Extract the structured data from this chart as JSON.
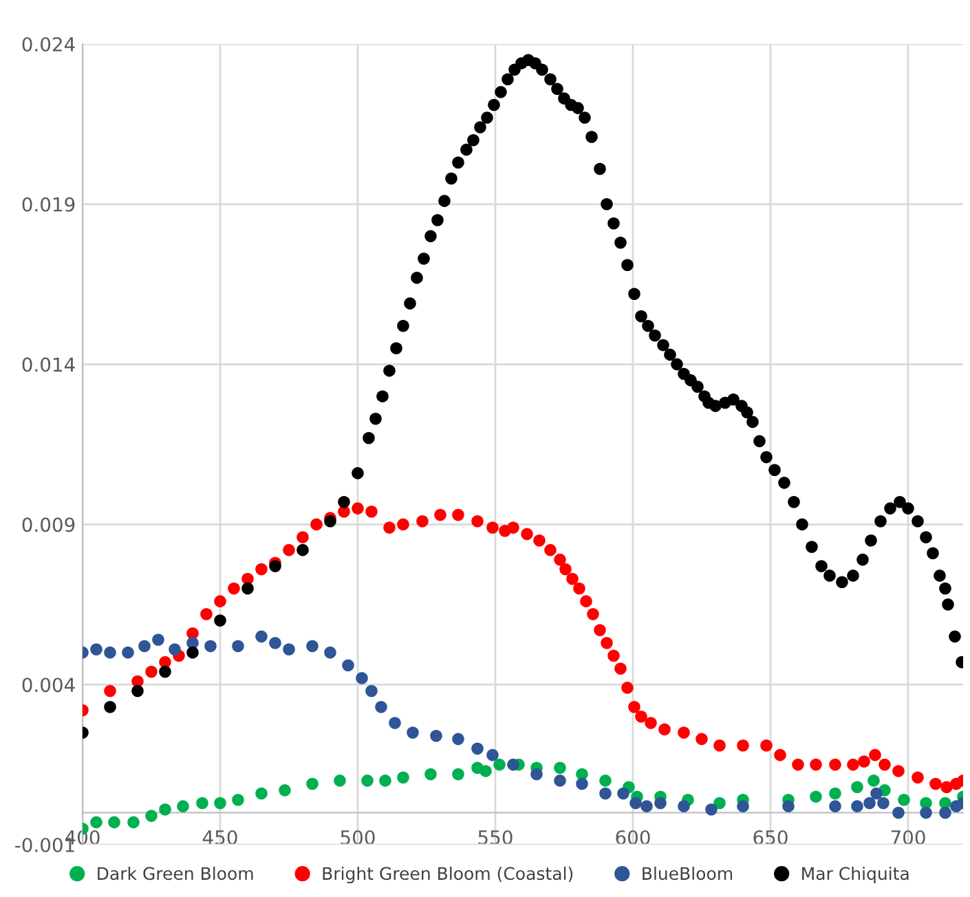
{
  "chart_data": {
    "type": "scatter",
    "xlim": [
      400,
      720
    ],
    "ylim": [
      -0.001,
      0.024
    ],
    "xticks": [
      400,
      450,
      500,
      550,
      600,
      650,
      700
    ],
    "yticks": [
      -0.001,
      0.004,
      0.009,
      0.014,
      0.019,
      0.024
    ],
    "grid": true,
    "legend": "bottom",
    "marker": "circle",
    "series": [
      {
        "name": "Dark Green Bloom",
        "color": "#00b050",
        "x": [
          400,
          405,
          411.5,
          418.5,
          425,
          430,
          436.5,
          443.5,
          450,
          456.5,
          465,
          473.5,
          483.5,
          493.5,
          503.5,
          510,
          516.5,
          526.5,
          536.5,
          543.5,
          546.5,
          551.5,
          558.5,
          565,
          573.5,
          581.5,
          590,
          598.5,
          601.5,
          610,
          620,
          631.5,
          640,
          656.5,
          666.5,
          673.5,
          681.5,
          687.5,
          691.5,
          698.5,
          706.5,
          713.5,
          717.5,
          720
        ],
        "values": [
          -0.0005,
          -0.0003,
          -0.0003,
          -0.0003,
          -0.0001,
          0.0001,
          0.0002,
          0.0003,
          0.0003,
          0.0004,
          0.0006,
          0.0007,
          0.0009,
          0.001,
          0.001,
          0.001,
          0.0011,
          0.0012,
          0.0012,
          0.0014,
          0.0013,
          0.0015,
          0.0015,
          0.0014,
          0.0014,
          0.0012,
          0.001,
          0.0008,
          0.0005,
          0.0005,
          0.0004,
          0.0003,
          0.0004,
          0.0004,
          0.0005,
          0.0006,
          0.0008,
          0.001,
          0.0007,
          0.0004,
          0.0003,
          0.0003,
          null,
          0.0005
        ]
      },
      {
        "name": "Bright Green Bloom (Coastal)",
        "color": "#ff0000",
        "x": [
          400,
          410,
          420,
          425,
          430,
          435,
          440,
          445,
          450,
          455,
          460,
          465,
          470,
          475,
          480,
          485,
          490,
          495,
          500,
          505,
          511.5,
          516.5,
          523.5,
          530,
          536.5,
          543.5,
          549,
          553.5,
          556.5,
          561.5,
          566,
          570,
          573.5,
          575.5,
          578,
          580.5,
          583,
          585.5,
          588,
          590.5,
          593,
          595.5,
          598,
          600.5,
          603,
          606.5,
          611.5,
          618.5,
          625,
          631.5,
          640,
          648.5,
          653.5,
          660,
          666.5,
          673.5,
          680,
          684,
          688,
          691.5,
          696.5,
          703.5,
          710,
          714,
          717.5,
          720
        ],
        "values": [
          0.0032,
          0.0038,
          0.0041,
          0.0044,
          0.0047,
          0.0049,
          0.0056,
          0.0062,
          0.0066,
          0.007,
          0.0073,
          0.0076,
          0.0078,
          0.0082,
          0.0086,
          0.009,
          0.0092,
          0.0094,
          0.0095,
          0.0094,
          0.0089,
          0.009,
          0.0091,
          0.0093,
          0.0093,
          0.0091,
          0.0089,
          0.0088,
          0.0089,
          0.0087,
          0.0085,
          0.0082,
          0.0079,
          0.0076,
          0.0073,
          0.007,
          0.0066,
          0.0062,
          0.0057,
          0.0053,
          0.0049,
          0.0045,
          0.0039,
          0.0033,
          0.003,
          0.0028,
          0.0026,
          0.0025,
          0.0023,
          0.0021,
          0.0021,
          0.0021,
          0.0018,
          0.0015,
          0.0015,
          0.0015,
          0.0015,
          0.0016,
          0.0018,
          0.0015,
          0.0013,
          0.0011,
          0.0009,
          0.0008,
          0.0009,
          0.001
        ]
      },
      {
        "name": "BlueBloom",
        "color": "#2f5597",
        "x": [
          400,
          405,
          410,
          416.5,
          422.5,
          427.5,
          433.5,
          440,
          446.5,
          456.5,
          465,
          470,
          475,
          483.5,
          490,
          496.5,
          501.5,
          505,
          508.5,
          513.5,
          520,
          528.5,
          536.5,
          543.5,
          549,
          556.5,
          565,
          573.5,
          581.5,
          590,
          596.5,
          601,
          605,
          610,
          618.5,
          628.5,
          640,
          656.5,
          673.5,
          681.5,
          686,
          688.5,
          691,
          696.5,
          706.5,
          713.5,
          717.5,
          720
        ],
        "values": [
          0.005,
          0.0051,
          0.005,
          0.005,
          0.0052,
          0.0054,
          0.0051,
          0.0053,
          0.0052,
          0.0052,
          0.0055,
          0.0053,
          0.0051,
          0.0052,
          0.005,
          0.0046,
          0.0042,
          0.0038,
          0.0033,
          0.0028,
          0.0025,
          0.0024,
          0.0023,
          0.002,
          0.0018,
          0.0015,
          0.0012,
          0.001,
          0.0009,
          0.0006,
          0.0006,
          0.0003,
          0.0002,
          0.0003,
          0.0002,
          0.0001,
          0.0002,
          0.0002,
          0.0002,
          0.0002,
          0.0003,
          0.0006,
          0.0003,
          0.0,
          0.0,
          0.0,
          0.0002,
          0.0003
        ]
      },
      {
        "name": "Mar Chiquita",
        "color": "#000000",
        "x": [
          400,
          410,
          420,
          430,
          440,
          450,
          460,
          470,
          480,
          490,
          495,
          500,
          504,
          506.5,
          509,
          511.5,
          514,
          516.5,
          519,
          521.5,
          524,
          526.5,
          529,
          531.5,
          534,
          536.5,
          539.5,
          542,
          544.5,
          547,
          549.5,
          552,
          554.5,
          557,
          559.5,
          562,
          564.5,
          567,
          570,
          572.5,
          575,
          577.5,
          580,
          582.5,
          585,
          588,
          590.5,
          593,
          595.5,
          598,
          600.5,
          603,
          605.5,
          608,
          611,
          613.5,
          616,
          618.5,
          621,
          623.5,
          626,
          627.5,
          630,
          633.5,
          636.5,
          639.5,
          641.5,
          643.5,
          646,
          648.5,
          651.5,
          655,
          658.5,
          661.5,
          665,
          668.5,
          671.5,
          676,
          680,
          683.5,
          686.5,
          690,
          693.5,
          697,
          700,
          703.5,
          706.5,
          709,
          711.5,
          713.5,
          714.5,
          717,
          719.5
        ],
        "values": [
          0.0025,
          0.0033,
          0.0038,
          0.0044,
          0.005,
          0.006,
          0.007,
          0.0077,
          0.0082,
          0.0091,
          0.0097,
          0.0106,
          0.0117,
          0.0123,
          0.013,
          0.0138,
          0.0145,
          0.0152,
          0.0159,
          0.0167,
          0.0173,
          0.018,
          0.0185,
          0.0191,
          0.0198,
          0.0203,
          0.0207,
          0.021,
          0.0214,
          0.0217,
          0.0221,
          0.0225,
          0.0229,
          0.0232,
          0.0234,
          0.0235,
          0.0234,
          0.0232,
          0.0229,
          0.0226,
          0.0223,
          0.0221,
          0.022,
          0.0217,
          0.0211,
          0.0201,
          0.019,
          0.0184,
          0.0178,
          0.0171,
          0.0162,
          0.0155,
          0.0152,
          0.0149,
          0.0146,
          0.0143,
          0.014,
          0.0137,
          0.0135,
          0.0133,
          0.013,
          0.0128,
          0.0127,
          0.0128,
          0.0129,
          0.0127,
          0.0125,
          0.0122,
          0.0116,
          0.0111,
          0.0107,
          0.0103,
          0.0097,
          0.009,
          0.0083,
          0.0077,
          0.0074,
          0.0072,
          0.0074,
          0.0079,
          0.0085,
          0.0091,
          0.0095,
          0.0097,
          0.0095,
          0.0091,
          0.0086,
          0.0081,
          0.0074,
          0.007,
          0.0065,
          0.0055,
          0.0047
        ]
      }
    ]
  }
}
